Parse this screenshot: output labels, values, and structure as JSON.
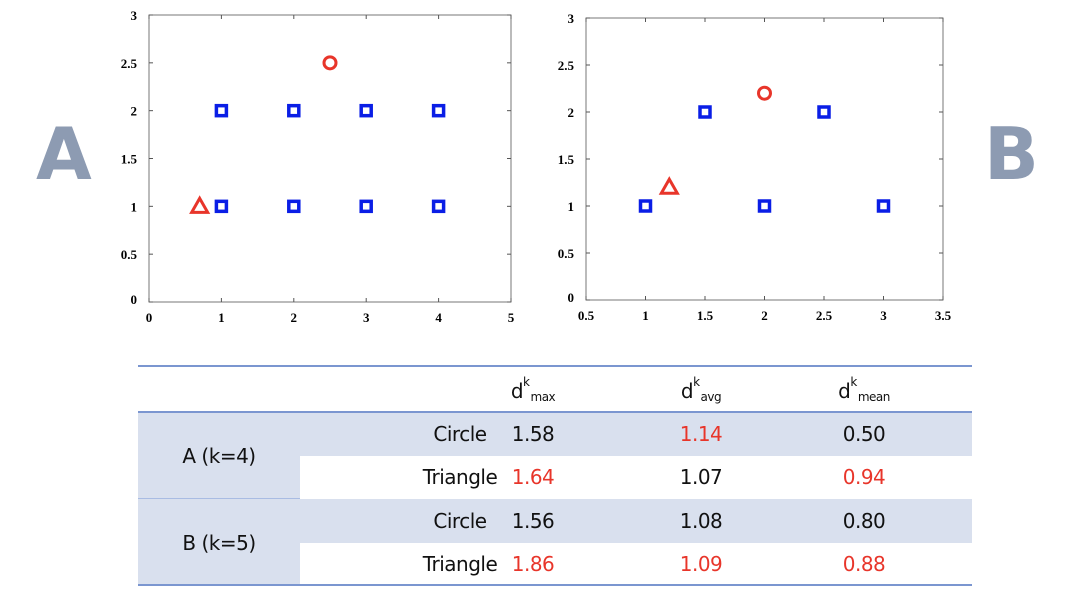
{
  "panel_labels": {
    "a": "A",
    "b": "B"
  },
  "chart_data": [
    {
      "type": "scatter",
      "panel": "A",
      "xlim": [
        0,
        5
      ],
      "ylim": [
        0,
        3
      ],
      "xticks": [
        "0",
        "1",
        "2",
        "3",
        "4",
        "5"
      ],
      "yticks": [
        "0",
        "0.5",
        "1",
        "1.5",
        "2",
        "2.5",
        "3"
      ],
      "grid": false,
      "series": [
        {
          "marker": "square",
          "color": "#0a1ee6",
          "points": [
            [
              1,
              1
            ],
            [
              2,
              1
            ],
            [
              3,
              1
            ],
            [
              4,
              1
            ],
            [
              1,
              2
            ],
            [
              2,
              2
            ],
            [
              3,
              2
            ],
            [
              4,
              2
            ]
          ]
        },
        {
          "marker": "circle",
          "color": "#e8352a",
          "points": [
            [
              2.5,
              2.5
            ]
          ]
        },
        {
          "marker": "triangle",
          "color": "#e8352a",
          "points": [
            [
              0.7,
              1
            ]
          ]
        }
      ]
    },
    {
      "type": "scatter",
      "panel": "B",
      "xlim": [
        0.5,
        3.5
      ],
      "ylim": [
        0,
        3
      ],
      "xticks": [
        "0.5",
        "1",
        "1.5",
        "2",
        "2.5",
        "3",
        "3.5"
      ],
      "yticks": [
        "0",
        "0.5",
        "1",
        "1.5",
        "2",
        "2.5",
        "3"
      ],
      "grid": false,
      "series": [
        {
          "marker": "square",
          "color": "#0a1ee6",
          "points": [
            [
              1,
              1
            ],
            [
              2,
              1
            ],
            [
              3,
              1
            ],
            [
              1.5,
              2
            ],
            [
              2.5,
              2
            ]
          ]
        },
        {
          "marker": "circle",
          "color": "#e8352a",
          "points": [
            [
              2,
              2.2
            ]
          ]
        },
        {
          "marker": "triangle",
          "color": "#e8352a",
          "points": [
            [
              1.2,
              1.2
            ]
          ]
        }
      ]
    }
  ],
  "table": {
    "headers": [
      {
        "base": "d",
        "sup": "k",
        "sub": "max"
      },
      {
        "base": "d",
        "sup": "k",
        "sub": "avg"
      },
      {
        "base": "d",
        "sup": "k",
        "sub": "mean"
      }
    ],
    "groups": [
      {
        "label": "A (k=4)",
        "rows": [
          {
            "label": "Circle",
            "values": [
              "1.58",
              "1.14",
              "0.50"
            ],
            "highlight": [
              false,
              true,
              false
            ]
          },
          {
            "label": "Triangle",
            "values": [
              "1.64",
              "1.07",
              "0.94"
            ],
            "highlight": [
              true,
              false,
              true
            ]
          }
        ]
      },
      {
        "label": "B (k=5)",
        "rows": [
          {
            "label": "Circle",
            "values": [
              "1.56",
              "1.08",
              "0.80"
            ],
            "highlight": [
              false,
              false,
              false
            ]
          },
          {
            "label": "Triangle",
            "values": [
              "1.86",
              "1.09",
              "0.88"
            ],
            "highlight": [
              true,
              true,
              true
            ]
          }
        ]
      }
    ],
    "highlight_color": "#e8352a",
    "shade_color": "#d9e0ee"
  }
}
